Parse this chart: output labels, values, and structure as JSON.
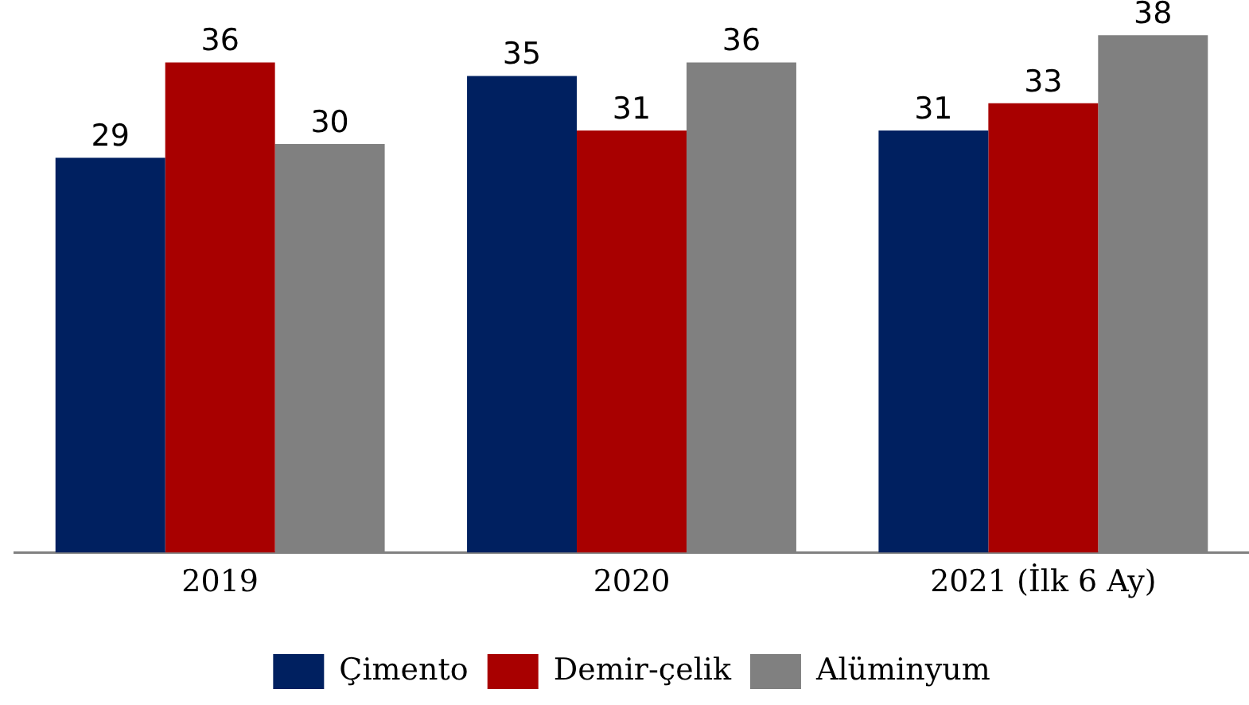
{
  "chart_data": {
    "type": "bar",
    "categories": [
      "2019",
      "2020",
      "2021 (İlk 6 Ay)"
    ],
    "series": [
      {
        "name": "Çimento",
        "color": "#002060",
        "values": [
          29,
          35,
          31
        ]
      },
      {
        "name": "Demir-çelik",
        "color": "#a80000",
        "values": [
          36,
          31,
          33
        ]
      },
      {
        "name": "Alüminyum",
        "color": "#808080",
        "values": [
          30,
          36,
          38
        ]
      }
    ],
    "data_labels": true,
    "legend": "bottom"
  }
}
